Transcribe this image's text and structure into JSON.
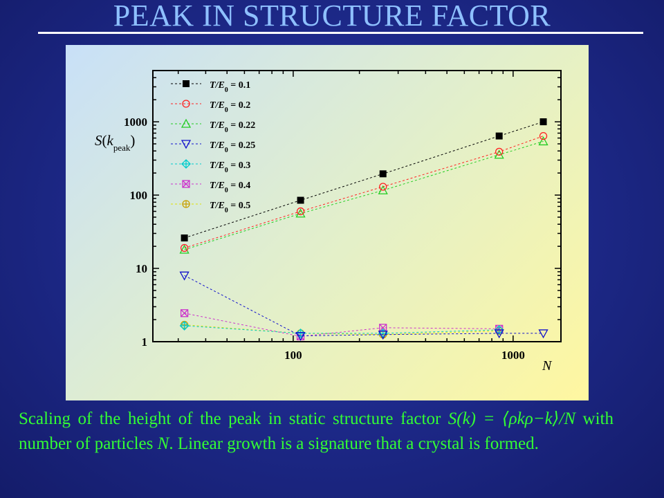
{
  "slide": {
    "title": "PEAK IN STRUCTURE FACTOR",
    "caption": {
      "part1": "Scaling of the height of the peak in static structure factor ",
      "formula": "S(k) = ⟨ρkρ−k⟩/N",
      "part2": " with number of particles ",
      "n_symbol": "N",
      "part3": ". Linear growth is a signature that a crystal is formed."
    },
    "colors": {
      "background": "#1e2a8c",
      "title": "#8ec0ff",
      "caption": "#33ff33"
    }
  },
  "chart_data": {
    "type": "scatter",
    "xlabel": "N",
    "ylabel": "S(k_peak)",
    "xscale": "log",
    "yscale": "log",
    "xlim": [
      23,
      1650
    ],
    "ylim": [
      1,
      5000
    ],
    "xticks": [
      100,
      1000
    ],
    "xtick_labels": [
      "100",
      "1000"
    ],
    "yticks": [
      1,
      10,
      100,
      1000
    ],
    "ytick_labels": [
      "1",
      "10",
      "100",
      "1000"
    ],
    "grid": false,
    "legend_position": "top-left",
    "line_style": "dashed",
    "series": [
      {
        "name": "T/E0 = 0.1",
        "label_main": "T/E",
        "label_sub": "0",
        "label_rest": " = 0.1",
        "color": "#000000",
        "marker": "square-filled",
        "x": [
          32,
          108,
          256,
          864,
          1372
        ],
        "y": [
          26,
          85,
          195,
          640,
          1000
        ]
      },
      {
        "name": "T/E0 = 0.2",
        "label_main": "T/E",
        "label_sub": "0",
        "label_rest": " = 0.2",
        "color": "#ff2020",
        "marker": "circle",
        "x": [
          32,
          108,
          256,
          864,
          1372
        ],
        "y": [
          19,
          60,
          130,
          390,
          640
        ]
      },
      {
        "name": "T/E0 = 0.22",
        "label_main": "T/E",
        "label_sub": "0",
        "label_rest": " = 0.22",
        "color": "#20cc20",
        "marker": "triangle-up",
        "x": [
          32,
          108,
          256,
          864,
          1372
        ],
        "y": [
          18,
          56,
          116,
          355,
          540
        ]
      },
      {
        "name": "T/E0 = 0.25",
        "label_main": "T/E",
        "label_sub": "0",
        "label_rest": " = 0.25",
        "color": "#1010cc",
        "marker": "triangle-down",
        "x": [
          32,
          108,
          256,
          864,
          1372
        ],
        "y": [
          8,
          1.2,
          1.25,
          1.3,
          1.3
        ]
      },
      {
        "name": "T/E0 = 0.3",
        "label_main": "T/E",
        "label_sub": "0",
        "label_rest": " = 0.3",
        "color": "#00cccc",
        "marker": "diamond-plus",
        "x": [
          32,
          108,
          256,
          864
        ],
        "y": [
          1.65,
          1.3,
          1.3,
          1.45
        ]
      },
      {
        "name": "T/E0 = 0.4",
        "label_main": "T/E",
        "label_sub": "0",
        "label_rest": " = 0.4",
        "color": "#cc33cc",
        "marker": "x-box",
        "x": [
          32,
          108,
          256,
          864
        ],
        "y": [
          2.45,
          1.18,
          1.55,
          1.5
        ]
      },
      {
        "name": "T/E0 = 0.5",
        "label_main": "T/E",
        "label_sub": "0",
        "label_rest": " = 0.5",
        "color": "#e0e000",
        "marker": "circle-plus",
        "x": [
          32,
          108,
          256,
          864
        ],
        "y": [
          1.7,
          1.3,
          1.25,
          1.4
        ]
      }
    ]
  }
}
